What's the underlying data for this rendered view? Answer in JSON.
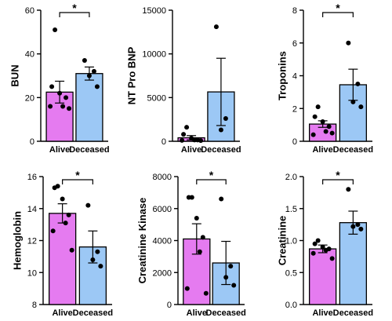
{
  "colors": {
    "alive": "#e57bf0",
    "deceased": "#9cc8f5",
    "axis": "#000000",
    "point": "#000000"
  },
  "chart_data": [
    {
      "type": "bar",
      "ylabel": "BUN",
      "categories": [
        "Alive",
        "Deceased"
      ],
      "ylim": [
        0,
        60
      ],
      "yticks": [
        0,
        20,
        40,
        60
      ],
      "values": [
        22.5,
        31
      ],
      "sem": [
        5,
        3
      ],
      "points": [
        [
          51,
          25,
          22,
          20,
          16,
          16,
          15
        ],
        [
          37,
          32,
          30,
          25
        ]
      ],
      "significance": "*"
    },
    {
      "type": "bar",
      "ylabel": "NT Pro BNP",
      "categories": [
        "Alive",
        "Deceased"
      ],
      "ylim": [
        0,
        15000
      ],
      "yticks": [
        0,
        5000,
        10000,
        15000
      ],
      "values": [
        400,
        5650
      ],
      "sem": [
        250,
        3850
      ],
      "points": [
        [
          1600,
          800,
          350,
          150,
          150,
          100,
          80
        ],
        [
          13100,
          2600,
          1300
        ]
      ],
      "significance": ""
    },
    {
      "type": "bar",
      "ylabel": "Troponins",
      "categories": [
        "Alive",
        "Deceased"
      ],
      "ylim": [
        0,
        8
      ],
      "yticks": [
        0,
        2,
        4,
        6,
        8
      ],
      "values": [
        1.05,
        3.45
      ],
      "sem": [
        0.2,
        0.95
      ],
      "points": [
        [
          2.1,
          1.5,
          1.2,
          0.9,
          0.6,
          0.4,
          0.5
        ],
        [
          6.0,
          3.5,
          2.4,
          2.1
        ]
      ],
      "significance": "*"
    },
    {
      "type": "bar",
      "ylabel": "Hemoglobin",
      "categories": [
        "Alive",
        "Deceased"
      ],
      "ylim": [
        8,
        16
      ],
      "yticks": [
        8,
        10,
        12,
        14,
        16
      ],
      "values": [
        13.7,
        11.6
      ],
      "sem": [
        0.6,
        1.0
      ],
      "points": [
        [
          15.4,
          15.3,
          14.6,
          13.6,
          13.1,
          12.6,
          11.4
        ],
        [
          14.2,
          11.3,
          10.8,
          10.4
        ]
      ],
      "significance": "*"
    },
    {
      "type": "bar",
      "ylabel": "Creatinine Kinase",
      "categories": [
        "Alive",
        "Deceased"
      ],
      "ylim": [
        0,
        8000
      ],
      "yticks": [
        0,
        2000,
        4000,
        6000,
        8000
      ],
      "values": [
        4100,
        2600
      ],
      "sem": [
        950,
        1350
      ],
      "points": [
        [
          6700,
          6700,
          5400,
          4200,
          3300,
          1000,
          700
        ],
        [
          6600,
          2400,
          1700,
          1200
        ]
      ],
      "significance": "*"
    },
    {
      "type": "bar",
      "ylabel": "Creatinine",
      "categories": [
        "Alive",
        "Deceased"
      ],
      "ylim": [
        0.0,
        2.0
      ],
      "yticks": [
        0.0,
        0.5,
        1.0,
        1.5,
        2.0
      ],
      "ytick_labels": [
        "0.0",
        "0.5",
        "1.0",
        "1.5",
        "2.0"
      ],
      "values": [
        0.87,
        1.28
      ],
      "sem": [
        0.06,
        0.18
      ],
      "points": [
        [
          1.0,
          0.95,
          0.9,
          0.87,
          0.85,
          0.8,
          0.72
        ],
        [
          1.8,
          1.25,
          1.22,
          1.18
        ]
      ],
      "significance": "*"
    }
  ]
}
